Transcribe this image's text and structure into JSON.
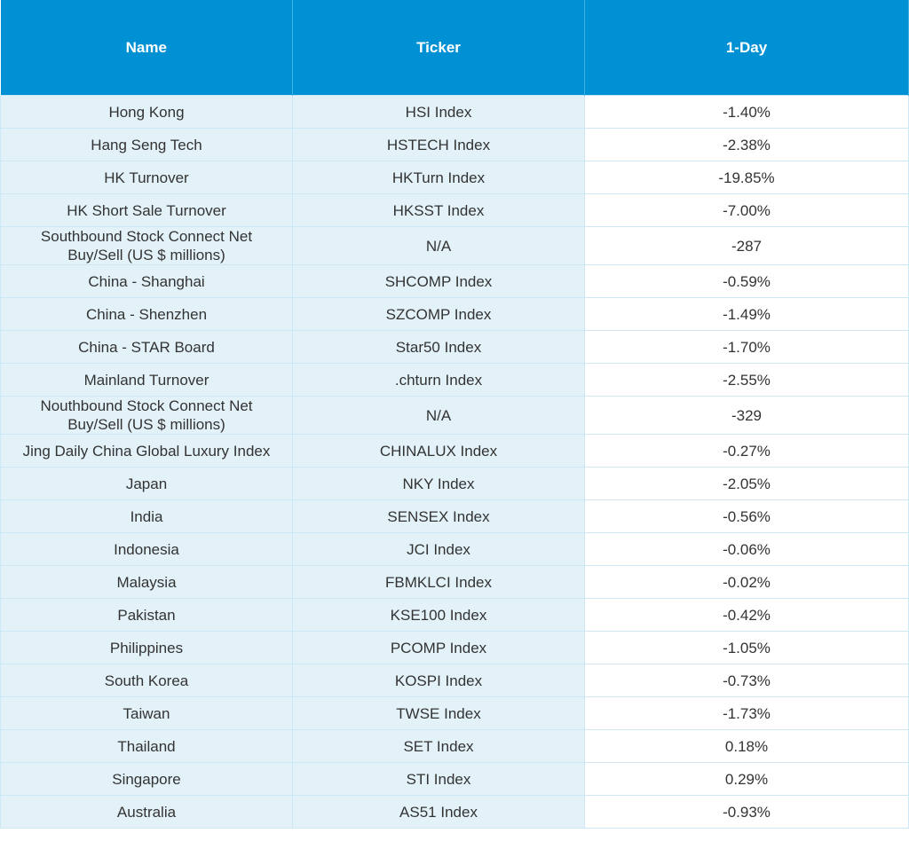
{
  "table": {
    "header": [
      "Name",
      "Ticker",
      "1-Day"
    ],
    "rows": [
      [
        "Hong Kong",
        "HSI Index",
        "-1.40%"
      ],
      [
        "Hang Seng Tech",
        "HSTECH Index",
        "-2.38%"
      ],
      [
        "HK Turnover",
        "HKTurn Index",
        "-19.85%"
      ],
      [
        "HK Short Sale Turnover",
        "HKSST Index",
        "-7.00%"
      ],
      [
        "Southbound Stock Connect Net Buy/Sell (US $ millions)",
        "N/A",
        "-287"
      ],
      [
        "China - Shanghai",
        "SHCOMP Index",
        "-0.59%"
      ],
      [
        "China - Shenzhen",
        "SZCOMP Index",
        "-1.49%"
      ],
      [
        "China - STAR Board",
        "Star50 Index",
        "-1.70%"
      ],
      [
        "Mainland Turnover",
        ".chturn Index",
        "-2.55%"
      ],
      [
        "Nouthbound Stock Connect Net Buy/Sell (US $ millions)",
        "N/A",
        "-329"
      ],
      [
        "Jing Daily China Global Luxury Index",
        "CHINALUX Index",
        "-0.27%"
      ],
      [
        "Japan",
        "NKY Index",
        "-2.05%"
      ],
      [
        "India",
        "SENSEX Index",
        "-0.56%"
      ],
      [
        "Indonesia",
        "JCI Index",
        "-0.06%"
      ],
      [
        "Malaysia",
        "FBMKLCI Index",
        "-0.02%"
      ],
      [
        "Pakistan",
        "KSE100 Index",
        "-0.42%"
      ],
      [
        "Philippines",
        "PCOMP Index",
        "-1.05%"
      ],
      [
        "South Korea",
        "KOSPI Index",
        "-0.73%"
      ],
      [
        "Taiwan",
        "TWSE Index",
        "-1.73%"
      ],
      [
        "Thailand",
        "SET Index",
        "0.18%"
      ],
      [
        "Singapore",
        "STI Index",
        "0.29%"
      ],
      [
        "Australia",
        "AS51 Index",
        "-0.93%"
      ]
    ]
  }
}
